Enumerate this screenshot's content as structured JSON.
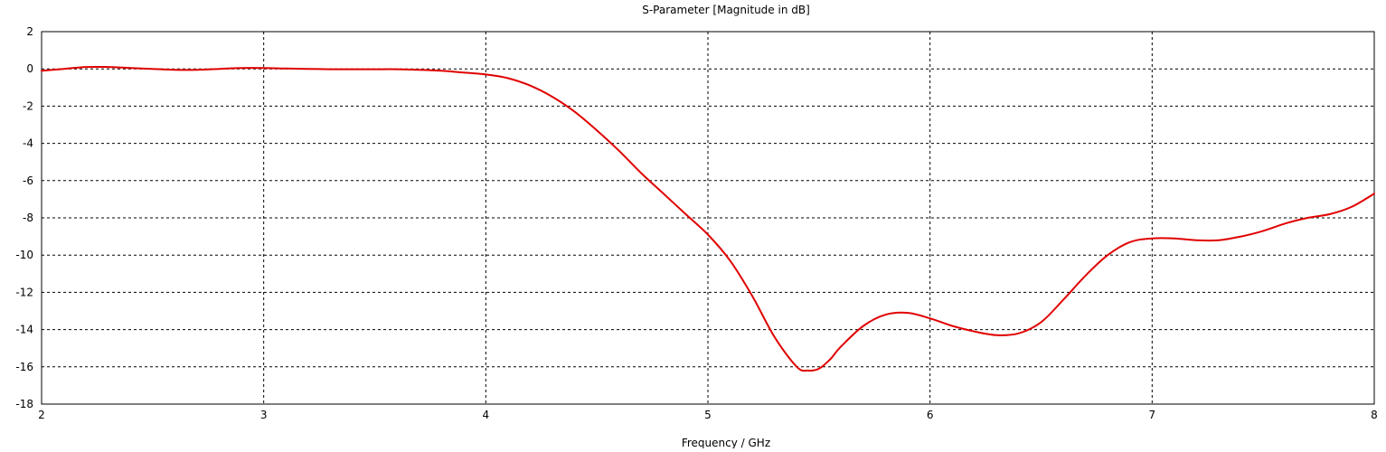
{
  "chart_data": {
    "type": "line",
    "title": "S-Parameter [Magnitude in dB]",
    "xlabel": "Frequency / GHz",
    "ylabel": "",
    "xlim": [
      2,
      8
    ],
    "ylim": [
      -18,
      2
    ],
    "xticks": [
      2,
      3,
      4,
      5,
      6,
      7,
      8
    ],
    "yticks": [
      2,
      0,
      -2,
      -4,
      -6,
      -8,
      -10,
      -12,
      -14,
      -16,
      -18
    ],
    "grid": true,
    "grid_style": "dashed",
    "legend": "none",
    "series": [
      {
        "color": "#e00000",
        "x": [
          2.0,
          2.1,
          2.2,
          2.3,
          2.4,
          2.5,
          2.6,
          2.7,
          2.8,
          2.9,
          3.0,
          3.1,
          3.2,
          3.3,
          3.4,
          3.5,
          3.6,
          3.7,
          3.8,
          3.9,
          4.0,
          4.1,
          4.2,
          4.3,
          4.4,
          4.5,
          4.6,
          4.7,
          4.8,
          4.9,
          5.0,
          5.1,
          5.2,
          5.3,
          5.4,
          5.45,
          5.5,
          5.55,
          5.6,
          5.7,
          5.8,
          5.9,
          6.0,
          6.1,
          6.2,
          6.3,
          6.4,
          6.5,
          6.6,
          6.7,
          6.8,
          6.9,
          7.0,
          7.1,
          7.2,
          7.3,
          7.4,
          7.5,
          7.6,
          7.7,
          7.8,
          7.9,
          8.0
        ],
        "y": [
          -0.1,
          0.0,
          0.1,
          0.1,
          0.05,
          0.0,
          -0.05,
          -0.05,
          0.0,
          0.05,
          0.05,
          0.02,
          0.0,
          -0.02,
          -0.02,
          -0.02,
          -0.02,
          -0.05,
          -0.1,
          -0.2,
          -0.3,
          -0.5,
          -0.9,
          -1.5,
          -2.3,
          -3.3,
          -4.4,
          -5.6,
          -6.7,
          -7.8,
          -8.9,
          -10.3,
          -12.2,
          -14.4,
          -16.0,
          -16.2,
          -16.1,
          -15.6,
          -14.9,
          -13.8,
          -13.2,
          -13.1,
          -13.4,
          -13.8,
          -14.1,
          -14.3,
          -14.2,
          -13.6,
          -12.4,
          -11.1,
          -10.0,
          -9.3,
          -9.1,
          -9.1,
          -9.2,
          -9.2,
          -9.0,
          -8.7,
          -8.3,
          -8.0,
          -7.8,
          -7.4,
          -6.7
        ]
      }
    ]
  }
}
